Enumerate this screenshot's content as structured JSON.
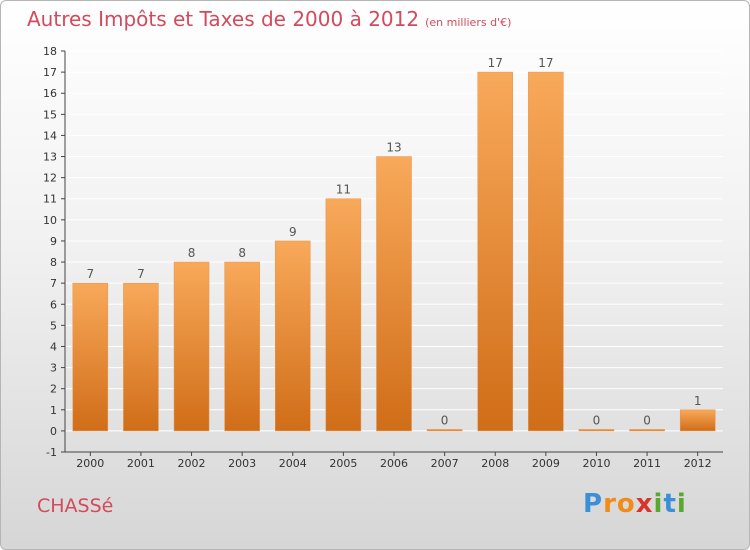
{
  "header": {
    "title": "Autres Impôts et Taxes de 2000 à 2012",
    "unit": "(en milliers d'€)"
  },
  "footer": {
    "commune": "CHASSé",
    "logo_letters": [
      "P",
      "r",
      "o",
      "x",
      "i",
      "t",
      "i"
    ],
    "logo_colors": [
      "#3a8fd8",
      "#f08c1a",
      "#f08c1a",
      "#d9342b",
      "#5aa832",
      "#3a8fd8",
      "#5aa832"
    ]
  },
  "colors": {
    "bar_top": "#f8a95a",
    "bar_bottom": "#d06d18",
    "title": "#d44a5c",
    "axis": "#444444",
    "grid": "#ffffff"
  },
  "chart_data": {
    "type": "bar",
    "title": "Autres Impôts et Taxes de 2000 à 2012",
    "subtitle": "(en milliers d'€)",
    "categories": [
      "2000",
      "2001",
      "2002",
      "2003",
      "2004",
      "2005",
      "2006",
      "2007",
      "2008",
      "2009",
      "2010",
      "2011",
      "2012"
    ],
    "values": [
      7,
      7,
      8,
      8,
      9,
      11,
      13,
      0,
      17,
      17,
      0,
      0,
      1
    ],
    "ylim": [
      -1,
      18
    ],
    "yticks": [
      -1,
      0,
      1,
      2,
      3,
      4,
      5,
      6,
      7,
      8,
      9,
      10,
      11,
      12,
      13,
      14,
      15,
      16,
      17,
      18
    ],
    "grid": true,
    "data_labels": true
  }
}
